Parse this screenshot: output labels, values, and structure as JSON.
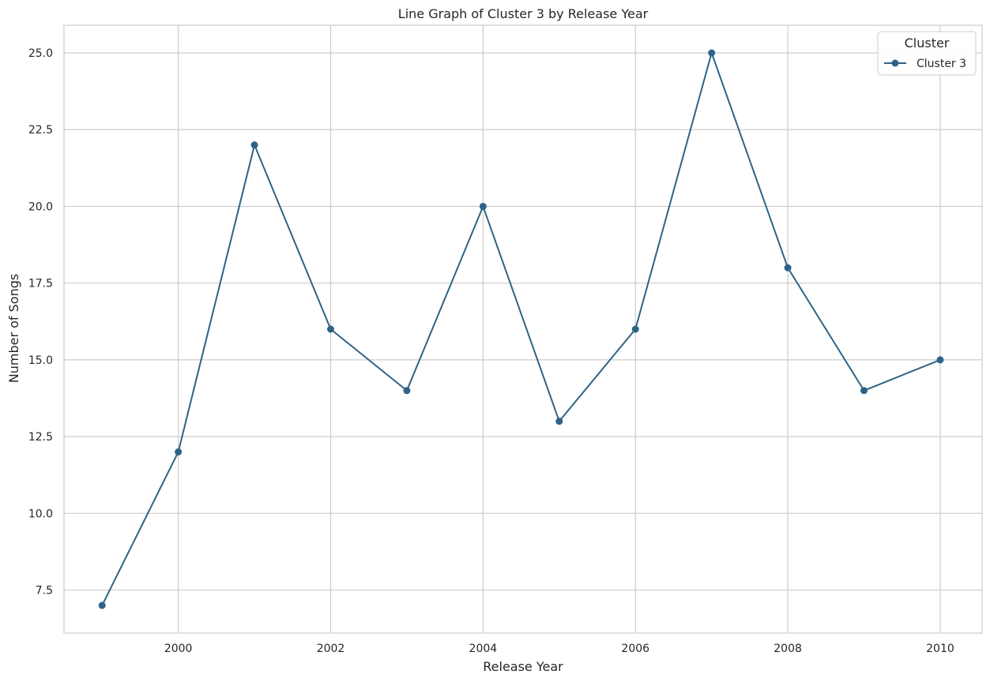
{
  "chart_data": {
    "type": "line",
    "title": "Line Graph of Cluster 3 by Release Year",
    "xlabel": "Release Year",
    "ylabel": "Number of Songs",
    "xlim": [
      1998.5,
      2010.55
    ],
    "ylim": [
      6.1,
      25.9
    ],
    "x_ticks": [
      2000,
      2002,
      2004,
      2006,
      2008,
      2010
    ],
    "y_ticks": [
      7.5,
      10.0,
      12.5,
      15.0,
      17.5,
      20.0,
      22.5,
      25.0
    ],
    "y_tick_labels": [
      "7.5",
      "10.0",
      "12.5",
      "15.0",
      "17.5",
      "20.0",
      "22.5",
      "25.0"
    ],
    "grid": true,
    "legend": {
      "title": "Cluster",
      "placement": "top-right"
    },
    "series": [
      {
        "name": "Cluster 3",
        "color": "#2e6387",
        "marker": "circle",
        "x": [
          1999,
          2000,
          2001,
          2002,
          2003,
          2004,
          2005,
          2006,
          2007,
          2008,
          2009,
          2010
        ],
        "y": [
          7,
          12,
          22,
          16,
          14,
          20,
          13,
          16,
          25,
          18,
          14,
          15
        ]
      }
    ]
  }
}
